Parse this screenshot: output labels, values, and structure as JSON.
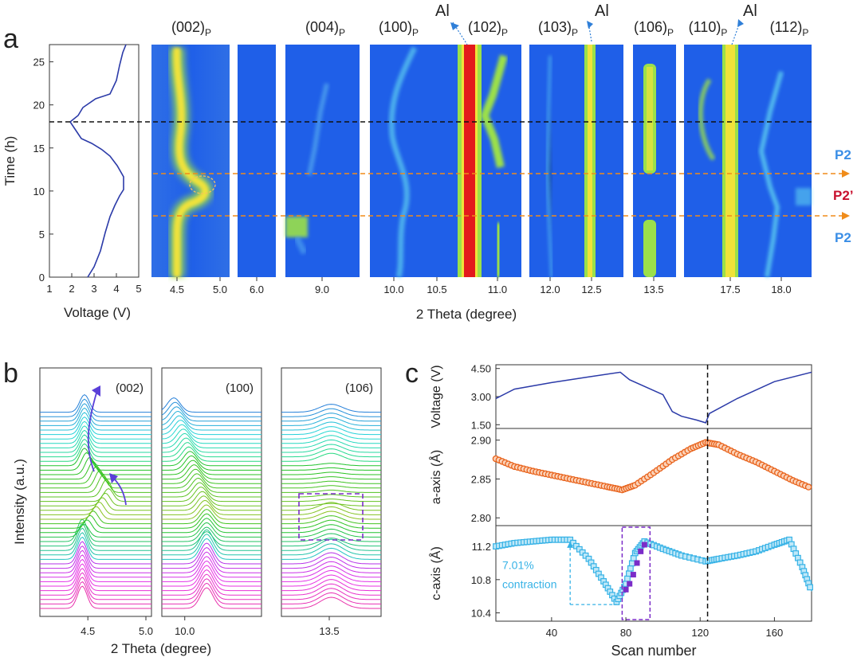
{
  "figure": {
    "panel_labels": [
      "a",
      "b",
      "c"
    ],
    "colors": {
      "map_bg": "#1f5fe8",
      "map_peak": "#e31a1c",
      "dash_black": "#111111",
      "dash_orange": "#f08c1a",
      "p2_label": "#3a8ee6",
      "p2prime_label": "#c8102e",
      "al_label": "#2f7fd8",
      "line_voltage": "#2b3aa8",
      "a_axis": "#e8631c",
      "c_axis": "#36b2e6",
      "c_axis_highlight": "#7b2cc8"
    }
  },
  "panel_a": {
    "voltage_plot": {
      "ylabel": "Time (h)",
      "xlabel": "Voltage (V)",
      "x_ticks": [
        "1",
        "2",
        "3",
        "4",
        "5"
      ],
      "y_ticks": [
        "0",
        "5",
        "10",
        "15",
        "20",
        "25"
      ]
    },
    "heatmap_xlabel": "2 Theta (degree)",
    "sub_panels": [
      {
        "ticks": [
          "4.5",
          "5.0"
        ]
      },
      {
        "ticks": [
          "6.0"
        ]
      },
      {
        "ticks": [
          "9.0"
        ]
      },
      {
        "ticks": [
          "10.0",
          "10.5",
          "11.0"
        ]
      },
      {
        "ticks": [
          "12.0",
          "12.5"
        ]
      },
      {
        "ticks": [
          "13.5"
        ]
      },
      {
        "ticks": [
          "17.5",
          "18.0"
        ]
      }
    ],
    "hkl_labels": [
      {
        "main": "(002)",
        "sub": "P"
      },
      {
        "main": "(004)",
        "sub": "P"
      },
      {
        "main": "(100)",
        "sub": "P"
      },
      {
        "main": "(102)",
        "sub": "P"
      },
      {
        "main": "(103)",
        "sub": "P"
      },
      {
        "main": "(106)",
        "sub": "P"
      },
      {
        "main": "(110)",
        "sub": "P"
      },
      {
        "main": "(112)",
        "sub": "P"
      }
    ],
    "al_labels": [
      "Al",
      "Al",
      "Al"
    ],
    "phase_labels": [
      "P2",
      "P2’",
      "P2"
    ]
  },
  "panel_b": {
    "ylabel": "Intensity (a.u.)",
    "xlabel": "2 Theta (degree)",
    "sub_panels": [
      {
        "label": "(002)",
        "ticks": [
          "4.5",
          "5.0"
        ]
      },
      {
        "label": "(100)",
        "ticks": [
          "10.0"
        ]
      },
      {
        "label": "(106)",
        "ticks": [
          "13.5"
        ]
      }
    ]
  },
  "chart_data": [
    {
      "type": "line",
      "panel": "c-top",
      "ylabel": "Voltage (V)",
      "y_ticks": [
        "1.50",
        "3.00",
        "4.50"
      ],
      "ylim": [
        1.3,
        4.7
      ],
      "x": [
        10,
        20,
        40,
        60,
        77,
        82,
        100,
        105,
        110,
        118,
        123,
        125,
        140,
        160,
        180
      ],
      "values": [
        2.9,
        3.4,
        3.75,
        4.05,
        4.3,
        3.9,
        3.1,
        2.2,
        1.95,
        1.75,
        1.6,
        2.1,
        2.9,
        3.8,
        4.3
      ]
    },
    {
      "type": "scatter",
      "panel": "c-middle",
      "ylabel": "a-axis (Å)",
      "y_ticks": [
        "2.80",
        "2.85",
        "2.90"
      ],
      "ylim": [
        2.79,
        2.915
      ],
      "x": [
        10,
        20,
        30,
        40,
        50,
        60,
        70,
        78,
        85,
        95,
        105,
        115,
        123,
        130,
        140,
        150,
        160,
        170,
        180
      ],
      "values": [
        2.876,
        2.866,
        2.86,
        2.855,
        2.85,
        2.845,
        2.84,
        2.836,
        2.842,
        2.858,
        2.875,
        2.889,
        2.897,
        2.894,
        2.882,
        2.872,
        2.86,
        2.848,
        2.838
      ]
    },
    {
      "type": "scatter",
      "panel": "c-bottom",
      "ylabel": "c-axis (Å)",
      "y_ticks": [
        "10.4",
        "10.8",
        "11.2"
      ],
      "ylim": [
        10.3,
        11.45
      ],
      "x": [
        10,
        20,
        30,
        40,
        50,
        60,
        68,
        75,
        80,
        85,
        90,
        100,
        110,
        123,
        130,
        140,
        150,
        160,
        168,
        175,
        180
      ],
      "values": [
        11.2,
        11.24,
        11.26,
        11.28,
        11.28,
        11.05,
        10.78,
        10.53,
        10.75,
        11.12,
        11.26,
        11.17,
        11.09,
        11.02,
        11.05,
        11.09,
        11.14,
        11.22,
        11.28,
        10.95,
        10.66
      ],
      "highlight_x": [
        80,
        82,
        84,
        86,
        88,
        90
      ],
      "highlight_values": [
        10.68,
        10.75,
        10.86,
        11.0,
        11.14,
        11.22
      ],
      "annotation_percent": "7.01%",
      "annotation_text": "contraction"
    },
    {
      "type": "axis",
      "panel": "c-shared-x",
      "xlabel": "Scan number",
      "x_ticks": [
        "40",
        "80",
        "120",
        "160"
      ],
      "xlim": [
        10,
        180
      ],
      "vline_at": 124
    }
  ]
}
